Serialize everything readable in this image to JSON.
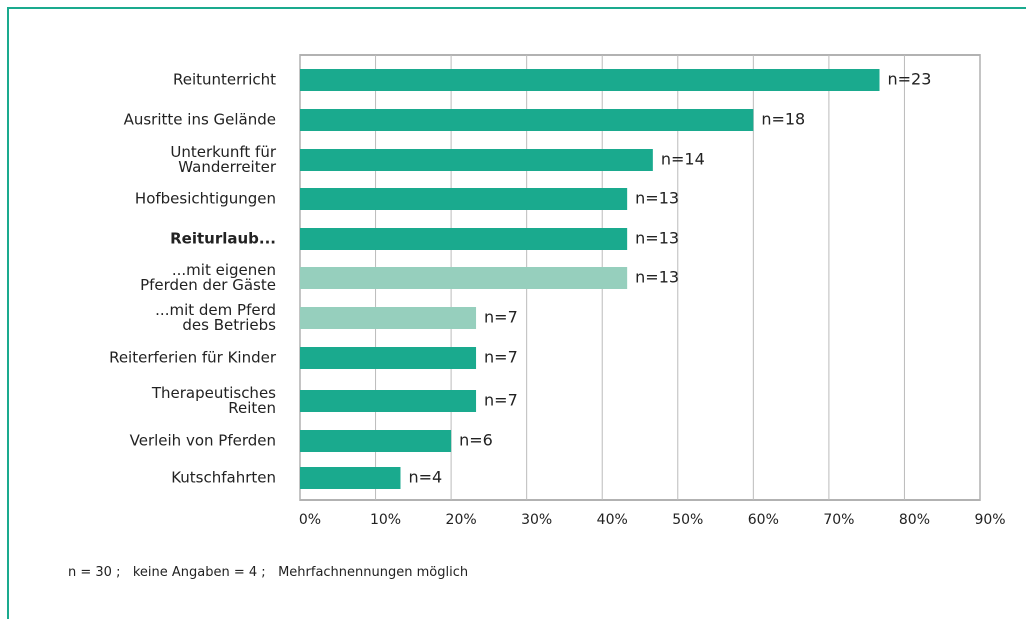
{
  "chart_data": {
    "type": "bar",
    "orientation": "horizontal",
    "categories": [
      "Reitunterricht",
      "Ausritte ins Gelände",
      "Unterkunft für\nWanderreiter",
      "Hofbesichtigungen",
      "Reiturlaub...",
      "...mit eigenen\nPferden der Gäste",
      "...mit dem Pferd\ndes Betriebs",
      "Reiterferien für Kinder",
      "Therapeutisches\nReiten",
      "Verleih von Pferden",
      "Kutschfahrten"
    ],
    "values": [
      76.7,
      60,
      46.7,
      43.3,
      43.3,
      43.3,
      23.3,
      23.3,
      23.3,
      20,
      13.3
    ],
    "value_labels": [
      "n=23",
      "n=18",
      "n=14",
      "n=13",
      "n=13",
      "n=13",
      "n=7",
      "n=7",
      "n=7",
      "n=6",
      "n=4"
    ],
    "colors": [
      "#1aaa8e",
      "#1aaa8e",
      "#1aaa8e",
      "#1aaa8e",
      "#1aaa8e",
      "#96cfbd",
      "#96cfbd",
      "#1aaa8e",
      "#1aaa8e",
      "#1aaa8e",
      "#1aaa8e"
    ],
    "xlim": [
      0,
      90
    ],
    "xticks": [
      {
        "value": 0,
        "label": "0%"
      },
      {
        "value": 10,
        "label": "10%"
      },
      {
        "value": 20,
        "label": "20%"
      },
      {
        "value": 30,
        "label": "30%"
      },
      {
        "value": 40,
        "label": "40%"
      },
      {
        "value": 50,
        "label": "50%"
      },
      {
        "value": 60,
        "label": "60%"
      },
      {
        "value": 70,
        "label": "70%"
      },
      {
        "value": 80,
        "label": "80%"
      },
      {
        "value": 90,
        "label": "90%"
      }
    ],
    "grid": true,
    "note": "n = 30 ;   keine Angaben = 4 ;   Mehrfachnennungen möglich"
  }
}
